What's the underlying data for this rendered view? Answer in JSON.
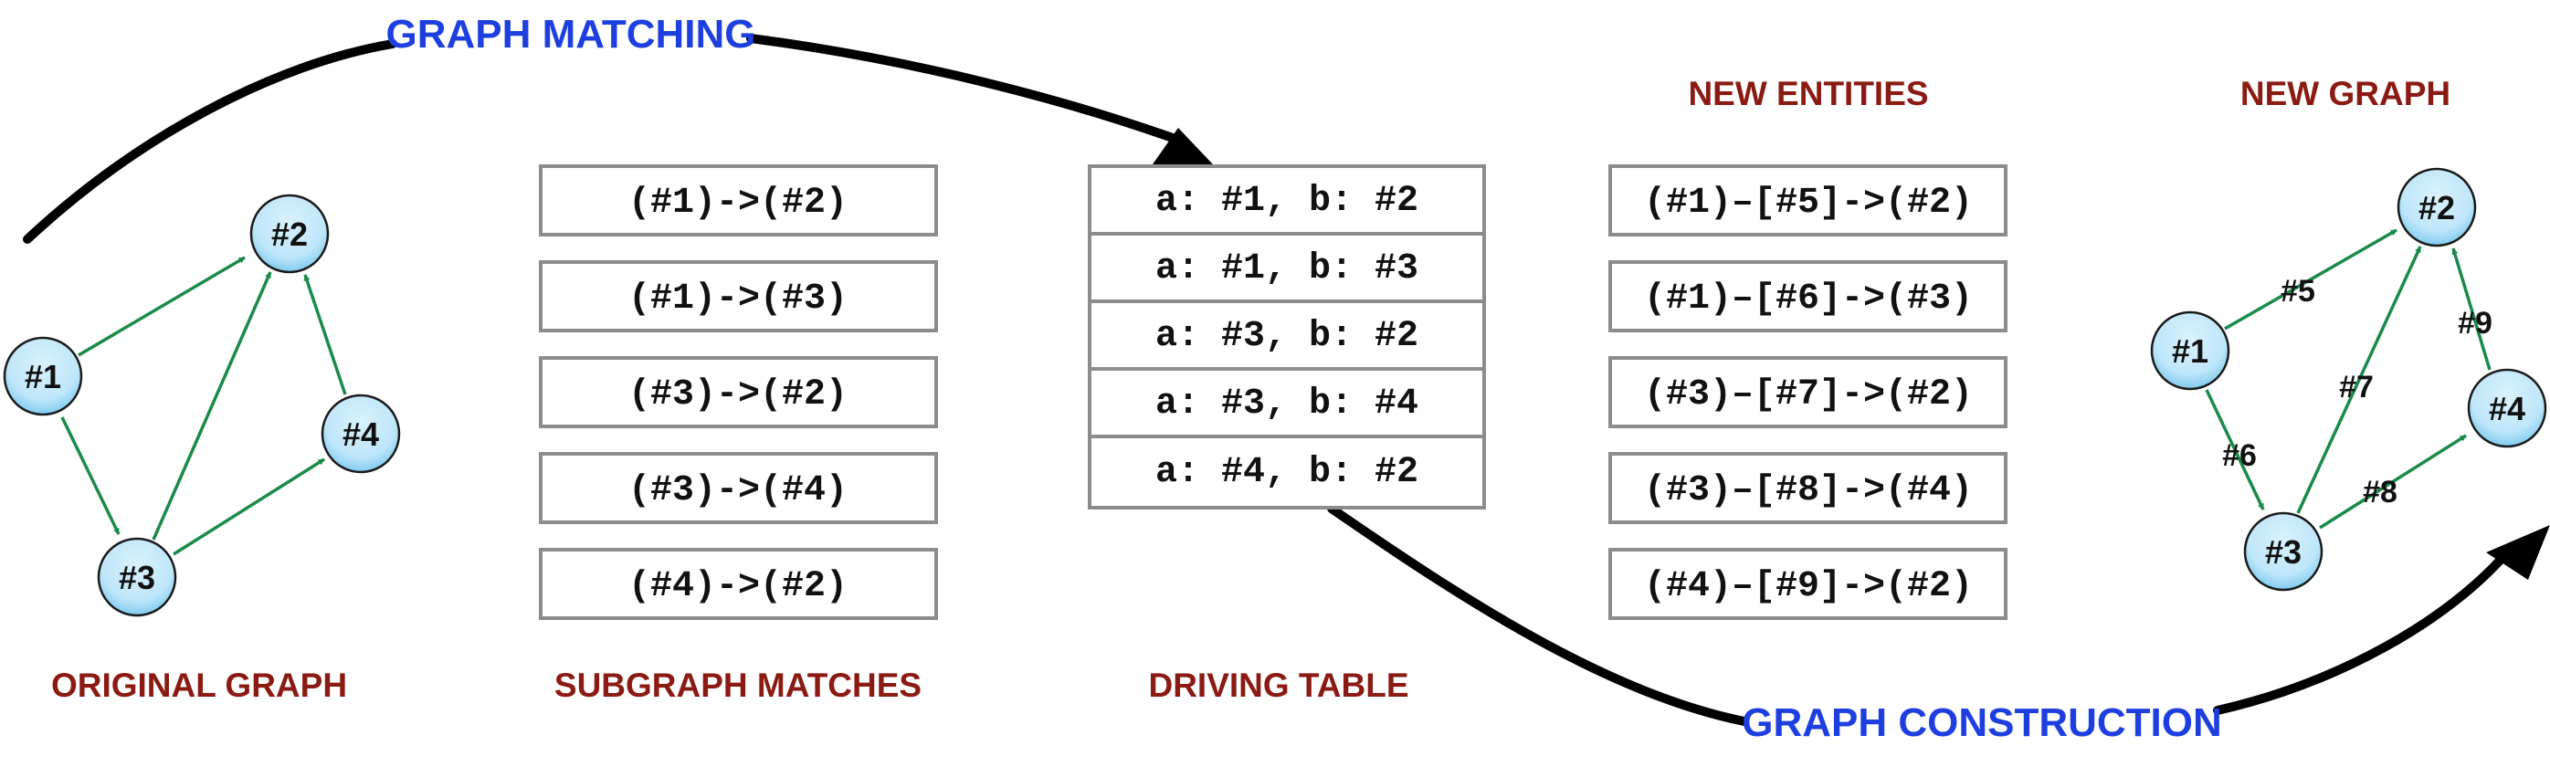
{
  "captions": {
    "original_graph": "ORIGINAL GRAPH",
    "subgraph_matches": "SUBGRAPH MATCHES",
    "driving_table": "DRIVING TABLE",
    "new_entities": "NEW ENTITIES",
    "new_graph": "NEW GRAPH"
  },
  "flow_labels": {
    "graph_matching": "GRAPH MATCHING",
    "graph_construction": "GRAPH CONSTRUCTION"
  },
  "original_graph": {
    "nodes": [
      "#1",
      "#2",
      "#3",
      "#4"
    ]
  },
  "subgraph_matches": [
    "(#1)->(#2)",
    "(#1)->(#3)",
    "(#3)->(#2)",
    "(#3)->(#4)",
    "(#4)->(#2)"
  ],
  "driving_table": [
    "a: #1, b: #2",
    "a: #1, b: #3",
    "a: #3, b: #2",
    "a: #3, b: #4",
    "a: #4, b: #2"
  ],
  "new_entities": [
    "(#1)–[#5]->(#2)",
    "(#1)–[#6]->(#3)",
    "(#3)–[#7]->(#2)",
    "(#3)–[#8]->(#4)",
    "(#4)–[#9]->(#2)"
  ],
  "new_graph": {
    "nodes": [
      "#1",
      "#2",
      "#3",
      "#4"
    ],
    "edge_labels": [
      "#5",
      "#6",
      "#7",
      "#8",
      "#9"
    ]
  },
  "colors": {
    "caption": "#8B1A12",
    "flow_label": "#1E3FE0",
    "edge": "#1A8A4A",
    "node_fill": "#BFE6FA",
    "box_border": "#8C8C8C"
  }
}
